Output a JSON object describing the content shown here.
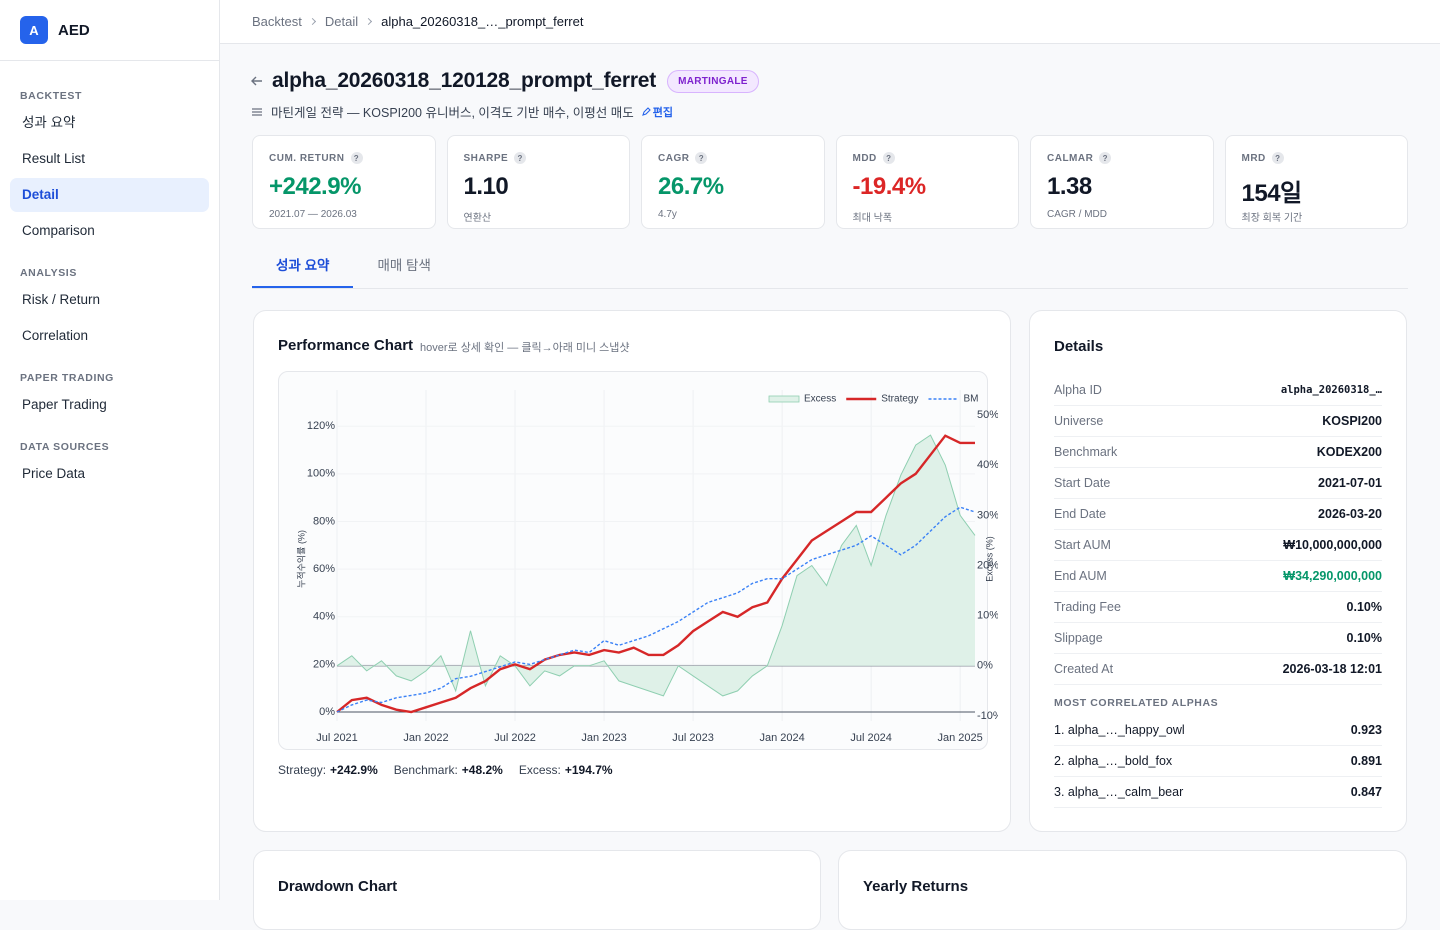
{
  "sidebar": {
    "brand_icon": "A",
    "brand_name": "AED",
    "sections": [
      {
        "title": "BACKTEST",
        "items": [
          {
            "label": "성과 요약"
          },
          {
            "label": "Result List"
          },
          {
            "label": "Detail",
            "active": true
          },
          {
            "label": "Comparison"
          }
        ]
      },
      {
        "title": "ANALYSIS",
        "items": [
          {
            "label": "Risk / Return"
          },
          {
            "label": "Correlation"
          }
        ]
      },
      {
        "title": "PAPER TRADING",
        "items": [
          {
            "label": "Paper Trading"
          }
        ]
      },
      {
        "title": "DATA SOURCES",
        "items": [
          {
            "label": "Price Data"
          }
        ]
      }
    ]
  },
  "breadcrumb": [
    "Backtest",
    "Detail",
    "alpha_20260318_…_prompt_ferret"
  ],
  "header": {
    "title": "alpha_20260318_120128_prompt_ferret",
    "badge": "MARTINGALE",
    "description": "마틴게일 전략 — KOSPI200 유니버스, 이격도 기반 매수, 이평선 매도",
    "edit": "편집"
  },
  "metrics_help": "?",
  "metrics": [
    {
      "label": "CUM. RETURN",
      "value": "+242.9%",
      "sub": "2021.07 — 2026.03",
      "tone": "positive"
    },
    {
      "label": "SHARPE",
      "value": "1.10",
      "sub": "연환산",
      "tone": "neutral"
    },
    {
      "label": "CAGR",
      "value": "26.7%",
      "sub": "4.7y",
      "tone": "positive"
    },
    {
      "label": "MDD",
      "value": "-19.4%",
      "sub": "최대 낙폭",
      "tone": "negative"
    },
    {
      "label": "CALMAR",
      "value": "1.38",
      "sub": "CAGR / MDD",
      "tone": "neutral"
    },
    {
      "label": "MRD",
      "value": "154일",
      "sub": "최장 회복 기간",
      "tone": "neutral"
    }
  ],
  "tabs": [
    {
      "label": "성과 요약",
      "active": true
    },
    {
      "label": "매매 탐색"
    }
  ],
  "performance": {
    "title": "Performance Chart",
    "hint": "hover로 상세 확인 — 클릭→아래 미니 스냅샷",
    "summary": [
      {
        "label": "Strategy:",
        "value": "+242.9%"
      },
      {
        "label": "Benchmark:",
        "value": "+48.2%"
      },
      {
        "label": "Excess:",
        "value": "+194.7%"
      }
    ]
  },
  "chart_data": {
    "type": "line",
    "y_label": "누적수익률 (%)",
    "y2_label": "Excess (%)",
    "x": [
      "2021-07",
      "2021-08",
      "2021-09",
      "2021-10",
      "2021-11",
      "2021-12",
      "2022-01",
      "2022-02",
      "2022-03",
      "2022-04",
      "2022-05",
      "2022-06",
      "2022-07",
      "2022-08",
      "2022-09",
      "2022-10",
      "2022-11",
      "2022-12",
      "2023-01",
      "2023-02",
      "2023-03",
      "2023-04",
      "2023-05",
      "2023-06",
      "2023-07",
      "2023-08",
      "2023-09",
      "2023-10",
      "2023-11",
      "2023-12",
      "2024-01",
      "2024-02",
      "2024-03",
      "2024-04",
      "2024-05",
      "2024-06",
      "2024-07",
      "2024-08",
      "2024-09",
      "2024-10",
      "2024-11",
      "2024-12",
      "2025-01",
      "2025-02"
    ],
    "series": [
      {
        "name": "Excess",
        "color": "#8fcfb1",
        "fill": "#dff1e8",
        "axis": "y2",
        "area": true,
        "values": [
          0,
          2,
          -1,
          1,
          -2,
          -3,
          -1,
          2,
          -5,
          7,
          -4,
          2,
          0,
          -4,
          -1,
          -2,
          0,
          0,
          1,
          -3,
          -4,
          -5,
          -6,
          0,
          -2,
          -4,
          -6,
          -5,
          -2,
          0,
          8,
          18,
          20,
          16,
          24,
          28,
          20,
          30,
          38,
          44,
          46,
          40,
          30,
          26
        ]
      },
      {
        "name": "Strategy",
        "color": "#d62728",
        "values": [
          0,
          5,
          6,
          3,
          1,
          0,
          2,
          4,
          6,
          10,
          13,
          18,
          20,
          18,
          22,
          24,
          25,
          24,
          26,
          25,
          27,
          24,
          24,
          28,
          34,
          38,
          42,
          40,
          44,
          46,
          56,
          64,
          72,
          76,
          80,
          84,
          84,
          90,
          96,
          100,
          108,
          116,
          113,
          113
        ]
      },
      {
        "name": "BM",
        "color": "#3b82f6",
        "dashed": true,
        "values": [
          0,
          3,
          5,
          4,
          6,
          7,
          8,
          10,
          14,
          15,
          17,
          19,
          21,
          20,
          22,
          24,
          26,
          25,
          30,
          28,
          30,
          32,
          35,
          38,
          42,
          46,
          48,
          50,
          54,
          56,
          56,
          60,
          64,
          66,
          68,
          70,
          74,
          70,
          66,
          70,
          76,
          82,
          86,
          84
        ]
      }
    ],
    "xlim": [
      "2021-07",
      "2025-02"
    ],
    "xticks": [
      {
        "value": "2021-07",
        "label": "Jul 2021"
      },
      {
        "value": "2022-01",
        "label": "Jan 2022"
      },
      {
        "value": "2022-07",
        "label": "Jul 2022"
      },
      {
        "value": "2023-01",
        "label": "Jan 2023"
      },
      {
        "value": "2023-07",
        "label": "Jul 2023"
      },
      {
        "value": "2024-01",
        "label": "Jan 2024"
      },
      {
        "value": "2024-07",
        "label": "Jul 2024"
      },
      {
        "value": "2025-01",
        "label": "Jan 2025"
      }
    ],
    "ylim": [
      -2.5,
      131
    ],
    "yticks": [
      {
        "value": 0,
        "label": "0%"
      },
      {
        "value": 20,
        "label": "20%"
      },
      {
        "value": 40,
        "label": "40%"
      },
      {
        "value": 60,
        "label": "60%"
      },
      {
        "value": 80,
        "label": "80%"
      },
      {
        "value": 100,
        "label": "100%"
      },
      {
        "value": 120,
        "label": "120%"
      }
    ],
    "y2lim": [
      -10.4,
      53
    ],
    "y2ticks": [
      {
        "value": -10,
        "label": "-10%"
      },
      {
        "value": 0,
        "label": "0%"
      },
      {
        "value": 10,
        "label": "10%"
      },
      {
        "value": 20,
        "label": "20%"
      },
      {
        "value": 30,
        "label": "30%"
      },
      {
        "value": 40,
        "label": "40%"
      },
      {
        "value": 50,
        "label": "50%"
      }
    ],
    "grid": true,
    "legend": "upper right"
  },
  "details": {
    "title": "Details",
    "rows": [
      {
        "label": "Alpha ID",
        "value": "alpha_20260318_…",
        "mono": true
      },
      {
        "label": "Universe",
        "value": "KOSPI200"
      },
      {
        "label": "Benchmark",
        "value": "KODEX200"
      },
      {
        "label": "Start Date",
        "value": "2021-07-01"
      },
      {
        "label": "End Date",
        "value": "2026-03-20"
      },
      {
        "label": "Start AUM",
        "value": "₩10,000,000,000"
      },
      {
        "label": "End AUM",
        "value": "₩34,290,000,000",
        "tone": "positive"
      },
      {
        "label": "Trading Fee",
        "value": "0.10%"
      },
      {
        "label": "Slippage",
        "value": "0.10%"
      },
      {
        "label": "Created At",
        "value": "2026-03-18 12:01"
      }
    ],
    "correlated_title": "MOST CORRELATED ALPHAS",
    "correlated": [
      {
        "label": "1. alpha_…_happy_owl",
        "value": "0.923"
      },
      {
        "label": "2. alpha_…_bold_fox",
        "value": "0.891"
      },
      {
        "label": "3. alpha_…_calm_bear",
        "value": "0.847"
      }
    ]
  },
  "bottom_cards": [
    "Drawdown Chart",
    "Yearly Returns"
  ]
}
